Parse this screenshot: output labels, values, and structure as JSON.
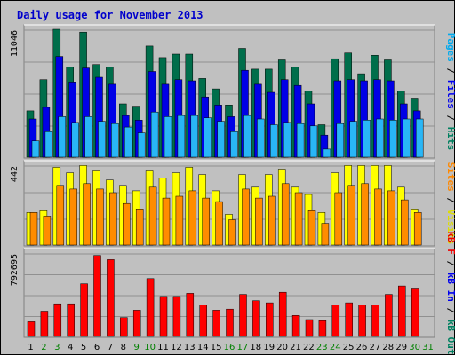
{
  "title": "Daily usage for November 2013",
  "colors": {
    "hits": "#006e4b",
    "files": "#0000e6",
    "pages": "#29b6f6",
    "visits": "#ffff00",
    "sites": "#ff8c00",
    "kbin": "#ff0000",
    "weekday": "#000000",
    "weekend": "#008000"
  },
  "panel_labels": {
    "top": [
      {
        "text": "Pages",
        "color": "#00aaee"
      },
      {
        "text": " / ",
        "color": "#000000"
      },
      {
        "text": "Files",
        "color": "#0000ee"
      },
      {
        "text": " / ",
        "color": "#000000"
      },
      {
        "text": "Hits",
        "color": "#008060"
      }
    ],
    "mid": [
      {
        "text": "Sites",
        "color": "#ff8800"
      },
      {
        "text": " / ",
        "color": "#000000"
      },
      {
        "text": "Visits",
        "color": "#dddd00"
      }
    ],
    "bot": [
      {
        "text": "kB F",
        "color": "#ee0000"
      },
      {
        "text": " / ",
        "color": "#000000"
      },
      {
        "text": "kB In",
        "color": "#0000ee"
      },
      {
        "text": " / ",
        "color": "#000000"
      },
      {
        "text": "kB Out",
        "color": "#008060"
      }
    ]
  },
  "chart_data": [
    {
      "type": "bar",
      "name": "Pages / Files / Hits",
      "ymax_label": "11046",
      "ylim": [
        0,
        11046
      ],
      "x": [
        1,
        2,
        3,
        4,
        5,
        6,
        7,
        8,
        9,
        10,
        11,
        12,
        13,
        14,
        15,
        16,
        17,
        18,
        19,
        20,
        21,
        22,
        23,
        24,
        25,
        26,
        27,
        28,
        29,
        30,
        31
      ],
      "weekend": [
        2,
        3,
        9,
        10,
        16,
        17,
        23,
        24,
        30,
        31
      ],
      "series": [
        {
          "name": "Hits",
          "values": [
            4000,
            6700,
            11046,
            7800,
            10800,
            8000,
            7800,
            4600,
            4400,
            9600,
            8600,
            8900,
            8900,
            6800,
            5900,
            4500,
            9400,
            7600,
            7600,
            8400,
            7800,
            5700,
            2800,
            8500,
            9000,
            7200,
            8800,
            8400,
            5700,
            5100,
            0
          ]
        },
        {
          "name": "Files",
          "values": [
            3300,
            4300,
            8700,
            6500,
            7700,
            6900,
            6300,
            3600,
            3200,
            7400,
            6300,
            6700,
            6600,
            5200,
            4500,
            3500,
            7500,
            6300,
            5600,
            6700,
            6200,
            4600,
            1900,
            6600,
            6700,
            6600,
            6700,
            6600,
            4600,
            4000,
            0
          ]
        },
        {
          "name": "Pages",
          "values": [
            1400,
            2200,
            3500,
            3000,
            3500,
            3100,
            2900,
            2600,
            2100,
            3900,
            3500,
            3600,
            3600,
            3400,
            3100,
            2200,
            3600,
            3300,
            2800,
            3000,
            2900,
            2700,
            700,
            2900,
            3100,
            3200,
            3300,
            3200,
            3300,
            3300,
            0
          ]
        }
      ]
    },
    {
      "type": "bar",
      "name": "Sites / Visits",
      "ymax_label": "442",
      "ylim": [
        0,
        442
      ],
      "x": [
        1,
        2,
        3,
        4,
        5,
        6,
        7,
        8,
        9,
        10,
        11,
        12,
        13,
        14,
        15,
        16,
        17,
        18,
        19,
        20,
        21,
        22,
        23,
        24,
        25,
        26,
        27,
        28,
        29,
        30,
        31
      ],
      "series": [
        {
          "name": "Visits",
          "values": [
            180,
            190,
            430,
            400,
            440,
            410,
            360,
            330,
            300,
            410,
            370,
            400,
            430,
            390,
            300,
            170,
            390,
            320,
            390,
            420,
            320,
            280,
            180,
            400,
            440,
            440,
            440,
            440,
            320,
            200,
            0
          ]
        },
        {
          "name": "Sites",
          "values": [
            180,
            160,
            330,
            310,
            340,
            310,
            290,
            230,
            200,
            320,
            260,
            270,
            300,
            260,
            240,
            140,
            310,
            260,
            270,
            340,
            290,
            190,
            120,
            290,
            330,
            340,
            310,
            300,
            250,
            180,
            0
          ]
        }
      ]
    },
    {
      "type": "bar",
      "name": "kB F / kB In / kB Out",
      "ymax_label": "792695",
      "ylim": [
        0,
        792695
      ],
      "x": [
        1,
        2,
        3,
        4,
        5,
        6,
        7,
        8,
        9,
        10,
        11,
        12,
        13,
        14,
        15,
        16,
        17,
        18,
        19,
        20,
        21,
        22,
        23,
        24,
        25,
        26,
        27,
        28,
        29,
        30,
        31
      ],
      "series": [
        {
          "name": "kB F",
          "values": [
            140000,
            240000,
            310000,
            310000,
            500000,
            770000,
            730000,
            180000,
            250000,
            550000,
            380000,
            380000,
            410000,
            300000,
            250000,
            260000,
            400000,
            340000,
            320000,
            420000,
            200000,
            160000,
            150000,
            300000,
            320000,
            300000,
            300000,
            400000,
            480000,
            460000,
            0
          ]
        }
      ]
    }
  ]
}
